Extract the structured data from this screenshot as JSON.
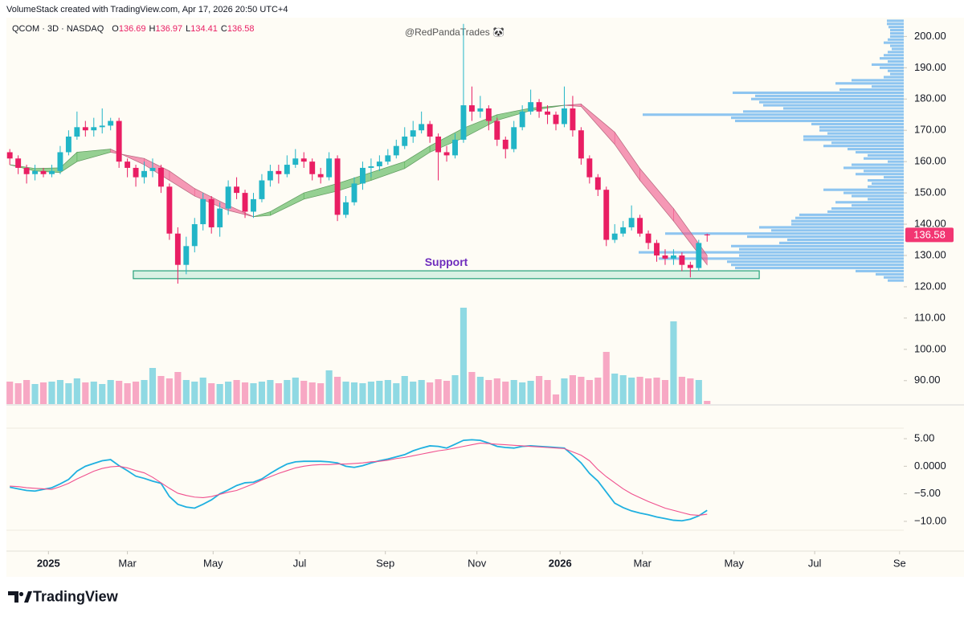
{
  "header": {
    "credit": "VolumeStack created with TradingView.com, Apr 17, 2026 20:50 UTC+4",
    "brand": "TradingView"
  },
  "chart_data": [
    {
      "type": "candlestick",
      "title": "QCOM · 3D · NASDAQ",
      "annotation": "@RedPandaTrades 🐼",
      "ohlc_labels": [
        "O",
        "H",
        "L",
        "C"
      ],
      "up_color": "#22b5c7",
      "down_color": "#e91e63",
      "open": [
        163,
        161,
        158,
        156,
        157,
        156,
        157,
        163,
        168,
        171,
        170,
        171,
        171.5,
        173,
        160,
        158,
        155,
        157,
        158,
        152,
        137,
        127,
        133,
        140,
        148,
        139,
        145,
        152,
        150,
        144,
        148,
        154,
        157,
        156,
        159,
        161,
        160,
        156,
        155,
        161,
        143,
        147,
        153,
        158,
        158.5,
        160,
        162,
        165,
        168,
        170,
        172,
        168,
        163,
        162,
        167,
        178,
        176,
        177,
        173,
        167,
        164,
        171,
        176,
        179,
        176,
        175,
        172,
        177,
        170,
        161,
        155,
        151,
        135,
        137,
        139,
        142,
        137,
        134,
        130,
        129,
        130,
        127,
        126,
        136.69
      ],
      "high": [
        164,
        162,
        159,
        159,
        158,
        159,
        165,
        170,
        176,
        173,
        174,
        177,
        174,
        174,
        161,
        159,
        160,
        161,
        159,
        153,
        139,
        136,
        142,
        150,
        149,
        147,
        154,
        155,
        151,
        150,
        156,
        159,
        159,
        162,
        164,
        163,
        161,
        158,
        163,
        162,
        149,
        155,
        160,
        161,
        162,
        164,
        167,
        171,
        173,
        176,
        173,
        169,
        165,
        169,
        204,
        184,
        181,
        178,
        174,
        168,
        173,
        178,
        183,
        180,
        178,
        176,
        184,
        181,
        171,
        162,
        156,
        152,
        140,
        141,
        146,
        143,
        138,
        135,
        132,
        132,
        131,
        128,
        135,
        136.97
      ],
      "low": [
        159,
        156,
        153,
        154,
        155,
        155,
        156,
        162,
        167,
        168,
        168,
        169,
        170,
        158,
        155,
        152,
        153,
        155,
        150,
        135,
        121,
        124,
        131,
        138,
        137,
        136,
        143,
        148,
        142,
        142,
        147,
        152,
        153,
        155,
        158,
        158,
        154,
        153,
        154,
        141,
        142,
        146,
        151,
        155,
        157,
        159,
        161,
        164,
        166,
        169,
        166,
        154,
        160,
        161,
        166,
        173,
        174,
        170,
        165,
        161,
        163,
        170,
        175,
        174,
        172,
        170,
        171,
        168,
        159,
        153,
        149,
        133,
        134,
        136,
        138,
        136,
        132,
        128,
        127,
        127,
        125,
        123,
        125,
        134.41
      ],
      "close": [
        161,
        158,
        156,
        157,
        156,
        157,
        163,
        168,
        171,
        170,
        171,
        171.5,
        173,
        160,
        158,
        155,
        157,
        158,
        152,
        137,
        127,
        133,
        140,
        148,
        139,
        145,
        152,
        150,
        144,
        148,
        154,
        157,
        156,
        159,
        161,
        160,
        156,
        155,
        161,
        143,
        147,
        153,
        158,
        158.5,
        160,
        162,
        165,
        168,
        170,
        172,
        168,
        163,
        162,
        167,
        178,
        176,
        177,
        173,
        167,
        164,
        171,
        176,
        179,
        176,
        175,
        172,
        177,
        170,
        161,
        155,
        151,
        135,
        137,
        139,
        142,
        137,
        134,
        130,
        129,
        130,
        127,
        126,
        134,
        136.58
      ],
      "xlim": [
        -0.4,
        106.4
      ],
      "xticks": [
        {
          "value": 4.6,
          "label": "2025"
        },
        {
          "value": 14,
          "label": "Mar"
        },
        {
          "value": 24.2,
          "label": "May"
        },
        {
          "value": 34.5,
          "label": "Jul"
        },
        {
          "value": 44.7,
          "label": "Sep"
        },
        {
          "value": 55.6,
          "label": "Nov"
        },
        {
          "value": 65.5,
          "label": "2026"
        },
        {
          "value": 75.3,
          "label": "Mar"
        },
        {
          "value": 86.2,
          "label": "May"
        },
        {
          "value": 95.8,
          "label": "Jul"
        },
        {
          "value": 105.9,
          "label": "Se"
        }
      ],
      "ylim": [
        82.5,
        206
      ],
      "yticks": [
        {
          "value": 90,
          "label": "90.00"
        },
        {
          "value": 100,
          "label": "100.00"
        },
        {
          "value": 110,
          "label": "110.00"
        },
        {
          "value": 120,
          "label": "120.00"
        },
        {
          "value": 130,
          "label": "130.00"
        },
        {
          "value": 140,
          "label": "140.00"
        },
        {
          "value": 150,
          "label": "150.00"
        },
        {
          "value": 160,
          "label": "160.00"
        },
        {
          "value": 170,
          "label": "170.00"
        },
        {
          "value": 180,
          "label": "180.00"
        },
        {
          "value": 190,
          "label": "190.00"
        },
        {
          "value": 200,
          "label": "200.00"
        }
      ],
      "price_tag_color": "#f23672",
      "ribbon": {
        "x": [
          0,
          3,
          6,
          8,
          12,
          16,
          19,
          22,
          26,
          29,
          31,
          35,
          39,
          43,
          47,
          50,
          54,
          58,
          62,
          66,
          68,
          72,
          75,
          79,
          83
        ],
        "fast": [
          159,
          157.8,
          158,
          163,
          164,
          159,
          154,
          149,
          144.4,
          142.4,
          144,
          150,
          153,
          156.5,
          160,
          165,
          170.7,
          175,
          177.1,
          178,
          177.6,
          165.5,
          154,
          141,
          127
        ],
        "slow": [
          159,
          157,
          156.5,
          160,
          163,
          161,
          157,
          151.4,
          146,
          142.4,
          142.8,
          148,
          150.6,
          154,
          157.8,
          163,
          167.6,
          173.2,
          176.3,
          178,
          178.4,
          169.4,
          157.8,
          145,
          130
        ],
        "up_color": "#5cb85c",
        "down_color": "#f06292"
      },
      "volume_profile": {
        "color": "#8ec5f0",
        "xlim": [
          0,
          330
        ],
        "prices": [
          205,
          204,
          203,
          202,
          201,
          200,
          199,
          198,
          197,
          196,
          195,
          194,
          193,
          192,
          191,
          190,
          189,
          188,
          187,
          186,
          185,
          184,
          183,
          182,
          181,
          180,
          179,
          178,
          177,
          176,
          175,
          174,
          173,
          172,
          171,
          170,
          169,
          168,
          167,
          166,
          165,
          164,
          163,
          162,
          161,
          160,
          159,
          158,
          157,
          156,
          155,
          154,
          153,
          152,
          151,
          150,
          149,
          148,
          147,
          146,
          145,
          144,
          143,
          142,
          141,
          140,
          139,
          138,
          137,
          136,
          135,
          134,
          133,
          132,
          131,
          130,
          129,
          128,
          127,
          126,
          125,
          124,
          123,
          122
        ],
        "values": [
          21,
          21,
          19,
          17,
          17,
          17,
          20,
          25,
          17,
          15,
          20,
          25,
          30,
          20,
          40,
          30,
          20,
          17,
          25,
          65,
          85,
          40,
          80,
          213,
          185,
          190,
          180,
          175,
          150,
          200,
          325,
          215,
          210,
          115,
          105,
          105,
          95,
          125,
          125,
          90,
          100,
          70,
          60,
          45,
          50,
          20,
          65,
          75,
          50,
          60,
          25,
          45,
          40,
          45,
          100,
          75,
          65,
          45,
          85,
          65,
          90,
          95,
          130,
          135,
          140,
          140,
          180,
          165,
          297,
          195,
          145,
          155,
          215,
          205,
          330,
          205,
          305,
          220,
          215,
          210,
          60,
          35,
          25,
          20
        ]
      },
      "support": {
        "label": "Support",
        "x": [
          14.7,
          89.2
        ],
        "y": [
          122.6,
          125.1
        ],
        "color": "#26a17b",
        "label_color": "#6f2dbd"
      }
    },
    {
      "type": "bar",
      "up_color": "#8fd9e3",
      "down_color": "#f7a8c4",
      "ylim": [
        0,
        130
      ],
      "values": [
        28,
        26,
        30,
        25,
        27,
        28,
        30,
        26,
        32,
        27,
        28,
        25,
        30,
        29,
        26,
        28,
        30,
        45,
        35,
        32,
        40,
        30,
        28,
        33,
        26,
        25,
        28,
        30,
        27,
        26,
        28,
        30,
        26,
        30,
        33,
        29,
        27,
        26,
        42,
        34,
        28,
        27,
        26,
        28,
        29,
        30,
        26,
        35,
        28,
        30,
        27,
        31,
        29,
        36,
        120,
        40,
        34,
        30,
        32,
        28,
        30,
        27,
        29,
        35,
        30,
        12,
        32,
        36,
        34,
        30,
        33,
        65,
        38,
        36,
        33,
        34,
        32,
        33,
        30,
        103,
        34,
        32,
        30,
        4
      ]
    },
    {
      "type": "line",
      "ylim": [
        -15.4,
        6.9
      ],
      "yticks": [
        {
          "value": 5,
          "label": "5.00"
        },
        {
          "value": 0,
          "label": "0.0000"
        },
        {
          "value": -5,
          "label": "−5.00"
        },
        {
          "value": -10,
          "label": "−10.00"
        }
      ],
      "series": [
        {
          "color": "#1fb0e0",
          "values": [
            -3.8,
            -4.1,
            -4.4,
            -4.5,
            -4.2,
            -3.9,
            -3.2,
            -2.4,
            -0.9,
            0,
            0.5,
            1,
            1.2,
            0.1,
            -0.8,
            -1.8,
            -2.2,
            -2.7,
            -3.1,
            -5.5,
            -6.9,
            -7.4,
            -7.6,
            -6.9,
            -6.1,
            -5,
            -4.3,
            -3.5,
            -3,
            -2.9,
            -2.3,
            -1.3,
            -0.4,
            0.4,
            0.8,
            0.9,
            0.9,
            0.9,
            0.8,
            0.6,
            0,
            -0.2,
            0.1,
            0.6,
            1,
            1.3,
            1.7,
            2.1,
            2.8,
            3.3,
            3.7,
            3.6,
            3.3,
            4,
            4.7,
            4.8,
            4.7,
            4.2,
            3.6,
            3.4,
            3.3,
            3.6,
            3.7,
            3.6,
            3.5,
            3.4,
            3.3,
            2,
            0.6,
            -1.3,
            -2.7,
            -4.7,
            -6.7,
            -7.5,
            -8.1,
            -8.5,
            -8.8,
            -9.2,
            -9.5,
            -9.8,
            -9.9,
            -9.6,
            -9,
            -8
          ]
        },
        {
          "color": "#f0508e",
          "values": [
            -3.6,
            -3.7,
            -3.9,
            -4,
            -4.1,
            -4.2,
            -3.7,
            -3.1,
            -2.3,
            -1.6,
            -0.9,
            -0.4,
            -0.1,
            0,
            -0.3,
            -0.8,
            -1.2,
            -2,
            -3,
            -4,
            -4.9,
            -5.3,
            -5.6,
            -5.7,
            -5.5,
            -5.1,
            -4.7,
            -4.4,
            -3.8,
            -3.2,
            -2.5,
            -1.9,
            -1.3,
            -0.8,
            -0.3,
            0,
            0.2,
            0.3,
            0.3,
            0.4,
            0.4,
            0.5,
            0.6,
            0.8,
            0.9,
            1.1,
            1.4,
            1.6,
            1.9,
            2.2,
            2.5,
            2.8,
            3,
            3.3,
            3.6,
            3.9,
            4.2,
            4.1,
            4,
            3.9,
            3.8,
            3.7,
            3.6,
            3.5,
            3.4,
            3.3,
            3.2,
            2.6,
            2,
            1,
            -0.6,
            -1.9,
            -3,
            -4.1,
            -5,
            -5.7,
            -6.4,
            -7,
            -7.6,
            -8,
            -8.4,
            -8.8,
            -8.9,
            -8.7
          ]
        }
      ]
    }
  ]
}
